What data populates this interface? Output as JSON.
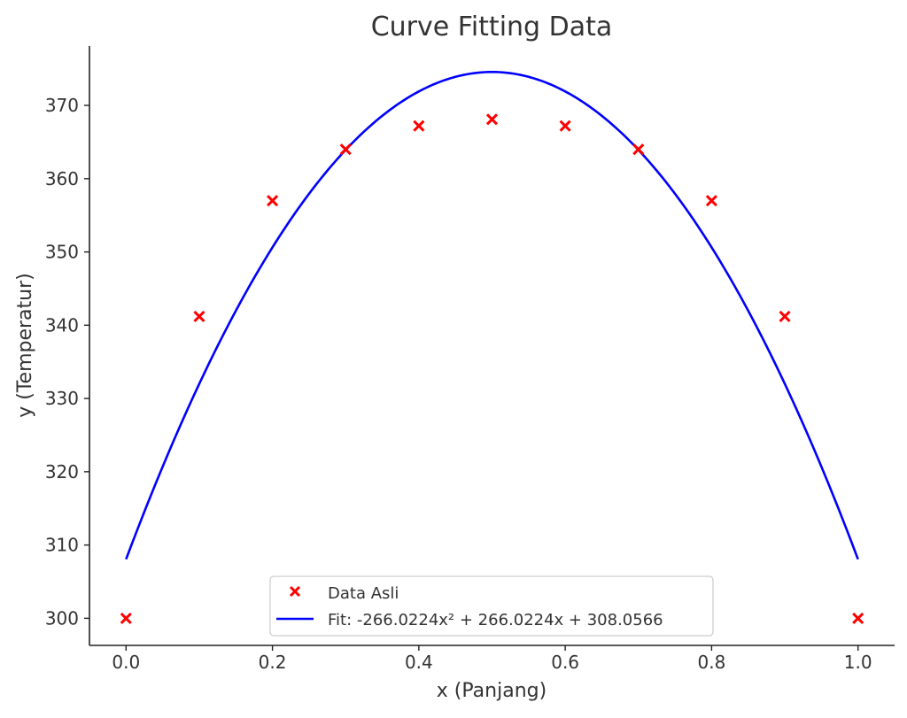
{
  "chart_data": {
    "type": "scatter",
    "title": "Curve Fitting Data",
    "xlabel": "x (Panjang)",
    "ylabel": "y (Temperatur)",
    "xlim": [
      -0.05,
      1.05
    ],
    "ylim": [
      296.3,
      378.1
    ],
    "xticks": [
      0.0,
      0.2,
      0.4,
      0.6,
      0.8,
      1.0
    ],
    "xtick_labels": [
      "0.0",
      "0.2",
      "0.4",
      "0.6",
      "0.8",
      "1.0"
    ],
    "yticks": [
      300,
      310,
      320,
      330,
      340,
      350,
      360,
      370
    ],
    "ytick_labels": [
      "300",
      "310",
      "320",
      "330",
      "340",
      "350",
      "360",
      "370"
    ],
    "grid": false,
    "legend_position": "bottom-center",
    "series": [
      {
        "name": "Data Asli",
        "kind": "scatter",
        "marker": "x",
        "color": "#ff0000",
        "x": [
          0.0,
          0.1,
          0.2,
          0.3,
          0.4,
          0.5,
          0.6,
          0.7,
          0.8,
          0.9,
          1.0
        ],
        "y": [
          300,
          341.2,
          357,
          364,
          367.2,
          368.1,
          367.2,
          364,
          357,
          341.2,
          300
        ]
      },
      {
        "name": "Fit: -266.0224x² + 266.0224x + 308.0566",
        "kind": "line",
        "color": "#0000ff",
        "coefficients": [
          -266.0224,
          266.0224,
          308.0566
        ],
        "x_range": [
          0.0,
          1.0
        ]
      }
    ]
  }
}
